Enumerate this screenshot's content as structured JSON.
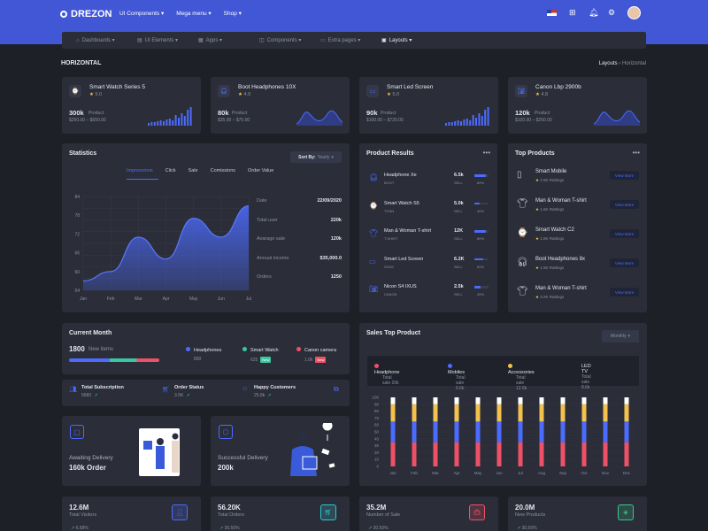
{
  "brand": "DREZON",
  "topmenu": [
    "UI Components ▾",
    "Mega menu ▾",
    "Shop ▾"
  ],
  "subnav": [
    "Dashboards ▾",
    "UI Elements ▾",
    "Apps ▾",
    "Components ▾",
    "Extra pages ▾",
    "Layouts ▾"
  ],
  "page": {
    "title": "HORIZONTAL",
    "crumb_parent": "Layouts",
    "crumb_current": "Horizontal"
  },
  "products": [
    {
      "name": "Smart Watch Series 5",
      "rating": "5.0",
      "count": "300k",
      "count_label": "Product",
      "range": "$250.00 – $650.00",
      "icon": "watch-icon",
      "spark": "bars"
    },
    {
      "name": "Boot Headphones 10X",
      "rating": "4.9",
      "count": "80k",
      "count_label": "Product",
      "range": "$35.00 – $75.00",
      "icon": "headphones-icon",
      "spark": "wave"
    },
    {
      "name": "Smart Led Screen",
      "rating": "5.0",
      "count": "90k",
      "count_label": "Product",
      "range": "$100.00 – $720.00",
      "icon": "screen-icon",
      "spark": "bars"
    },
    {
      "name": "Canon Lbp 2900b",
      "rating": "4.8",
      "count": "120k",
      "count_label": "Product",
      "range": "$100.00 – $250.00",
      "icon": "camera-icon",
      "spark": "wave"
    }
  ],
  "stats": {
    "title": "Statistics",
    "sort_label": "Sort By:",
    "sort_value": "Yearly",
    "tabs": [
      "Impressions",
      "Click",
      "Sale",
      "Comissions",
      "Order Value"
    ],
    "chart_data": {
      "type": "area",
      "title": "",
      "categories": [
        "Jan",
        "Feb",
        "Mar",
        "Apr",
        "May",
        "Jun",
        "Jul"
      ],
      "values": [
        57,
        60,
        71,
        64,
        77,
        71,
        81
      ],
      "ylim": [
        54,
        84
      ],
      "yticks": [
        54,
        60,
        66,
        72,
        78,
        84
      ]
    },
    "details": [
      [
        "Date",
        "22/09/2020"
      ],
      [
        "Total user",
        "220k"
      ],
      [
        "Avarage sale",
        "120k"
      ],
      [
        "Annual income",
        "$35,000.0"
      ],
      [
        "Orders",
        "1250"
      ]
    ]
  },
  "results": {
    "title": "Product Results",
    "menu": "•••",
    "items": [
      {
        "name": "Headphone Xe",
        "brand": "BOOT",
        "val": "6.5k",
        "sub": "SELL",
        "pct": "80%",
        "fill": 80,
        "icon": "headphones-icon"
      },
      {
        "name": "Smart Watch S5",
        "brand": "TITAN",
        "val": "5.0k",
        "sub": "SELL",
        "pct": "40%",
        "fill": 40,
        "icon": "watch-icon"
      },
      {
        "name": "Man & Woman T-shirt",
        "brand": "T-SHIRT",
        "val": "12K",
        "sub": "SELL",
        "pct": "80%",
        "fill": 80,
        "icon": "tshirt-icon"
      },
      {
        "name": "Smart Led Screen",
        "brand": "SONY",
        "val": "6.2K",
        "sub": "SELL",
        "pct": "60%",
        "fill": 60,
        "icon": "screen-icon"
      },
      {
        "name": "Nicon S4 IXUS",
        "brand": "CANON",
        "val": "2.5k",
        "sub": "SELL",
        "pct": "45%",
        "fill": 45,
        "icon": "camera-icon"
      }
    ]
  },
  "top": {
    "title": "Top Products",
    "menu": "•••",
    "btn": "View More",
    "items": [
      {
        "name": "Smart Mobile",
        "rating": "2.5K Rattings",
        "icon": "phone-icon"
      },
      {
        "name": "Man & Woman T-shirt",
        "rating": "1.6K Rattings",
        "icon": "tshirt-icon"
      },
      {
        "name": "Smart Watch C2",
        "rating": "1.5K Rattings",
        "icon": "watch-icon"
      },
      {
        "name": "Boot Headphones 8x",
        "rating": "1.5K Rattings",
        "icon": "headphones-icon"
      },
      {
        "name": "Man & Woman T-shirt",
        "rating": "3.2K Rattings",
        "icon": "tshirt-icon"
      }
    ]
  },
  "month": {
    "title": "Current Month",
    "value": "1800",
    "value_label": "New items",
    "items": [
      {
        "name": "Headphones",
        "val": "800",
        "badge": "",
        "color": "#4c6bff"
      },
      {
        "name": "Smart Watch",
        "val": "625",
        "badge": "New",
        "color": "#39c6a0"
      },
      {
        "name": "Canon camera",
        "val": "1.0k",
        "badge": "New",
        "color": "#ee5167"
      }
    ]
  },
  "summary": [
    {
      "label": "Total Subscription",
      "val": "5680",
      "icon": "users-icon"
    },
    {
      "label": "Order Status",
      "val": "3.5K",
      "icon": "cart-icon"
    },
    {
      "label": "Happy Customers",
      "val": "25.8k",
      "icon": "smile-icon"
    }
  ],
  "delivery": [
    {
      "label": "Awaiting Delivery",
      "val": "160k Order",
      "icon": "box-icon"
    },
    {
      "label": "Successful Delivery",
      "val": "200k",
      "icon": "package-icon"
    }
  ],
  "sales": {
    "title": "Sales Top Product",
    "filter": "Monthly",
    "legend": [
      {
        "name": "Headphone",
        "sub": "Total sale 20k",
        "color": "#ee5167"
      },
      {
        "name": "Mobiles",
        "sub": "Total sale 5.6k",
        "color": "#4c6bff"
      },
      {
        "name": "Accessories",
        "sub": "Total sale 12.6k",
        "color": "#f2c14e"
      },
      {
        "name": "LED TV",
        "sub": "Total sale 8.6k",
        "color": ""
      }
    ],
    "chart_data": {
      "type": "bar",
      "title": "",
      "categories": [
        "Jan",
        "Feb",
        "Mar",
        "Apr",
        "May",
        "Jun",
        "Jul",
        "Aug",
        "Sep",
        "Oct",
        "Nov",
        "Dec"
      ],
      "series": [
        {
          "name": "Headphone",
          "values": [
            35,
            35,
            35,
            35,
            35,
            35,
            35,
            35,
            35,
            35,
            35,
            35
          ]
        },
        {
          "name": "Mobiles",
          "values": [
            30,
            30,
            30,
            30,
            30,
            30,
            30,
            30,
            30,
            30,
            30,
            30
          ]
        },
        {
          "name": "Accessories",
          "values": [
            25,
            25,
            25,
            25,
            25,
            25,
            25,
            25,
            25,
            25,
            25,
            25
          ]
        },
        {
          "name": "LED TV",
          "values": [
            10,
            10,
            10,
            10,
            10,
            10,
            10,
            10,
            10,
            10,
            10,
            10
          ]
        }
      ],
      "ylim": [
        0,
        100
      ],
      "yticks": [
        0,
        10,
        20,
        30,
        40,
        50,
        60,
        70,
        80,
        90,
        100
      ]
    }
  },
  "bottom": [
    {
      "val": "12.6M",
      "label": "Total Visitors",
      "pct": "6.58%",
      "icon": "user-icon",
      "color": "#4c6bff"
    },
    {
      "val": "56.20K",
      "label": "Total Orders",
      "pct": "30.50%",
      "icon": "cart-icon",
      "color": "#2fc6d4"
    },
    {
      "val": "35.2M",
      "label": "Number of Sale",
      "pct": "20.50%",
      "icon": "bag-icon",
      "color": "#ee5167"
    },
    {
      "val": "20.0M",
      "label": "New Products",
      "pct": "30.50%",
      "icon": "cube-icon",
      "color": "#39c68d"
    }
  ]
}
